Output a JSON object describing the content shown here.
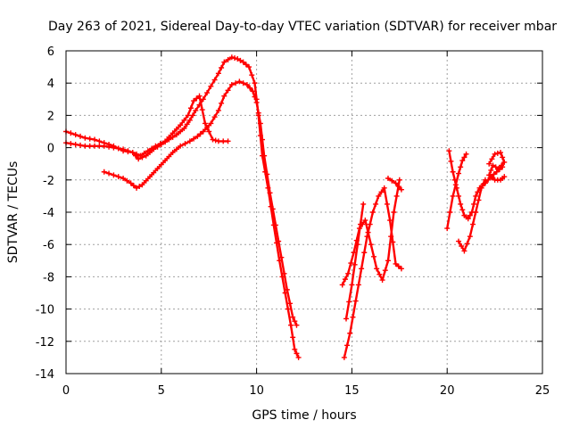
{
  "chart_data": {
    "type": "line",
    "title": "Day 263 of 2021, Sidereal Day-to-day VTEC variation (SDTVAR) for receiver mbar",
    "xlabel": "GPS time / hours",
    "ylabel": "SDTVAR / TECUs",
    "xlim": [
      0,
      25
    ],
    "ylim": [
      -14,
      6
    ],
    "x_ticks": [
      "0",
      "5",
      "10",
      "15",
      "20",
      "25"
    ],
    "y_ticks": [
      "6",
      "4",
      "2",
      "0",
      "-2",
      "-4",
      "-6",
      "-8",
      "-10",
      "-12",
      "-14"
    ],
    "grid": true,
    "color": "#ff0000",
    "marker": "plus",
    "series": [
      {
        "x": [
          0.0,
          0.5,
          1.0,
          1.5,
          2.0,
          2.5,
          3.0,
          3.5,
          3.9,
          4.3,
          4.7,
          5.2,
          5.6,
          6.0,
          6.4,
          6.7,
          7.0,
          7.3,
          7.7,
          8.0,
          8.5
        ],
        "y": [
          1.0,
          0.8,
          0.6,
          0.5,
          0.3,
          0.1,
          -0.2,
          -0.3,
          -0.5,
          -0.2,
          0.1,
          0.4,
          0.9,
          1.4,
          2.0,
          2.9,
          3.2,
          1.5,
          0.5,
          0.4,
          0.4
        ]
      },
      {
        "x": [
          0.0,
          0.5,
          1.0,
          1.5,
          2.0,
          2.5,
          3.0,
          3.5,
          3.8,
          4.2,
          4.6,
          5.0,
          5.4,
          5.8,
          6.2,
          6.5,
          6.8,
          7.2,
          7.6,
          8.0,
          8.3,
          8.7,
          9.0,
          9.3,
          9.6,
          9.9,
          10.1,
          10.3,
          10.6,
          10.9,
          11.2,
          11.5,
          11.8,
          12.0,
          12.2
        ],
        "y": [
          0.3,
          0.2,
          0.1,
          0.1,
          0.1,
          0.0,
          -0.1,
          -0.3,
          -0.7,
          -0.5,
          -0.1,
          0.2,
          0.5,
          0.8,
          1.2,
          1.7,
          2.3,
          3.0,
          3.8,
          4.6,
          5.3,
          5.6,
          5.5,
          5.3,
          5.0,
          4.0,
          2.0,
          -0.5,
          -2.5,
          -4.8,
          -7.0,
          -9.0,
          -11.0,
          -12.5,
          -13.0
        ]
      },
      {
        "x": [
          2.0,
          2.5,
          3.0,
          3.4,
          3.7,
          4.0,
          4.4,
          4.8,
          5.2,
          5.6,
          6.0,
          6.5,
          6.9,
          7.2,
          7.6,
          8.0,
          8.3,
          8.7,
          9.1,
          9.5,
          9.8,
          10.0,
          10.2,
          10.4,
          10.7,
          11.0,
          11.3,
          11.6,
          11.9,
          12.1
        ],
        "y": [
          -1.5,
          -1.7,
          -1.9,
          -2.2,
          -2.5,
          -2.3,
          -1.8,
          -1.3,
          -0.8,
          -0.3,
          0.1,
          0.4,
          0.7,
          1.0,
          1.5,
          2.3,
          3.2,
          3.9,
          4.1,
          3.9,
          3.5,
          2.8,
          1.5,
          -0.5,
          -2.8,
          -4.8,
          -6.8,
          -8.8,
          -10.5,
          -11.0
        ]
      },
      {
        "x": [
          14.5,
          14.8,
          15.1,
          15.4,
          15.7,
          16.0,
          16.3,
          16.6,
          16.9,
          17.2,
          17.5
        ],
        "y": [
          -8.5,
          -7.8,
          -6.5,
          -5.0,
          -4.5,
          -6.0,
          -7.5,
          -8.2,
          -7.0,
          -4.0,
          -2.0
        ]
      },
      {
        "x": [
          14.6,
          14.9,
          15.2,
          15.5,
          15.8,
          16.1,
          16.4,
          16.7,
          17.0,
          17.3,
          17.6
        ],
        "y": [
          -13.0,
          -11.5,
          -9.5,
          -7.5,
          -5.5,
          -4.0,
          -3.0,
          -2.5,
          -4.5,
          -7.2,
          -7.5
        ]
      },
      {
        "x": [
          14.7,
          15.0,
          15.3,
          15.6
        ],
        "y": [
          -10.6,
          -8.5,
          -6.0,
          -3.5
        ]
      },
      {
        "x": [
          16.9,
          17.3,
          17.6
        ],
        "y": [
          -1.9,
          -2.2,
          -2.6
        ]
      },
      {
        "x": [
          20.1,
          20.3,
          20.5,
          20.7,
          20.9,
          21.1,
          21.3,
          21.5,
          21.7,
          22.0,
          22.3,
          22.6,
          22.9
        ],
        "y": [
          -0.2,
          -1.5,
          -2.5,
          -3.5,
          -4.2,
          -4.4,
          -4.0,
          -3.0,
          -2.5,
          -2.2,
          -1.8,
          -1.5,
          -1.2
        ]
      },
      {
        "x": [
          20.0,
          20.3,
          20.6,
          20.8,
          21.0
        ],
        "y": [
          -5.0,
          -3.0,
          -1.6,
          -0.8,
          -0.4
        ]
      },
      {
        "x": [
          20.6,
          20.9,
          21.2,
          21.5,
          21.8,
          22.0
        ],
        "y": [
          -5.8,
          -6.4,
          -5.5,
          -4.0,
          -2.5,
          -2.0
        ]
      },
      {
        "x": [
          22.2,
          22.5,
          22.8,
          23.0,
          22.7,
          22.4,
          22.2,
          22.5,
          22.8,
          23.0
        ],
        "y": [
          -1.0,
          -0.4,
          -0.3,
          -0.9,
          -1.3,
          -1.1,
          -1.7,
          -2.0,
          -2.0,
          -1.8
        ]
      }
    ]
  }
}
